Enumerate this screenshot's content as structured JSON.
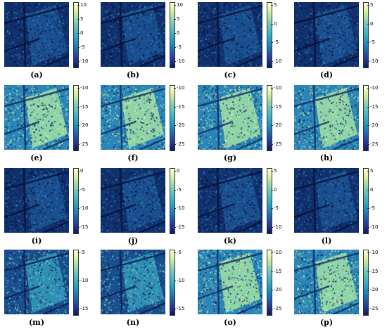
{
  "panels": [
    {
      "label": "(a)",
      "ticks": [
        "10",
        "5",
        "0",
        "-5",
        "-10"
      ],
      "tone": "dark"
    },
    {
      "label": "(b)",
      "ticks": [
        "10",
        "5",
        "0",
        "-5",
        "-10"
      ],
      "tone": "dark"
    },
    {
      "label": "(c)",
      "ticks": [
        "5",
        "0",
        "-5",
        "-10"
      ],
      "tone": "dark"
    },
    {
      "label": "(d)",
      "ticks": [
        "5",
        "0",
        "-5",
        "-10"
      ],
      "tone": "dark"
    },
    {
      "label": "(e)",
      "ticks": [
        "-10",
        "-15",
        "-20",
        "-25"
      ],
      "tone": "bright"
    },
    {
      "label": "(f)",
      "ticks": [
        "-10",
        "-15",
        "-20",
        "-25"
      ],
      "tone": "bright"
    },
    {
      "label": "(g)",
      "ticks": [
        "-10",
        "-15",
        "-20",
        "-25"
      ],
      "tone": "bright"
    },
    {
      "label": "(h)",
      "ticks": [
        "-10",
        "-15",
        "-20",
        "-25"
      ],
      "tone": "bright"
    },
    {
      "label": "(i)",
      "ticks": [
        "0",
        "-5",
        "-10",
        "-15"
      ],
      "tone": "dark"
    },
    {
      "label": "(j)",
      "ticks": [
        "0",
        "-5",
        "-10",
        "-15"
      ],
      "tone": "dark"
    },
    {
      "label": "(k)",
      "ticks": [
        "5",
        "0",
        "-5",
        "-10"
      ],
      "tone": "dark"
    },
    {
      "label": "(l)",
      "ticks": [
        "5",
        "0",
        "-5",
        "-10"
      ],
      "tone": "dark"
    },
    {
      "label": "(m)",
      "ticks": [
        "-5",
        "-10",
        "-15"
      ],
      "tone": "mid"
    },
    {
      "label": "(n)",
      "ticks": [
        "-5",
        "-10",
        "-15"
      ],
      "tone": "mid"
    },
    {
      "label": "(o)",
      "ticks": [
        "-10",
        "-15",
        "-20",
        "-25"
      ],
      "tone": "bright"
    },
    {
      "label": "(p)",
      "ticks": [
        "-10",
        "-15",
        "-20",
        "-25"
      ],
      "tone": "bright"
    }
  ],
  "colormap": [
    "#ffffd9",
    "#d4ee9e",
    "#7fcdbb",
    "#41b6c4",
    "#1d91c0",
    "#225ea8",
    "#253494",
    "#081d58"
  ]
}
